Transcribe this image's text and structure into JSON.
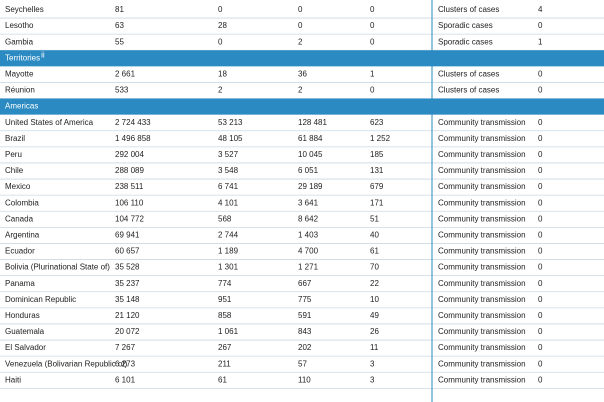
{
  "table": {
    "rows": [
      {
        "cells": [
          "Seychelles",
          "81",
          "0",
          "0",
          "0",
          "Clusters of cases",
          "4"
        ]
      },
      {
        "cells": [
          "Lesotho",
          "63",
          "28",
          "0",
          "0",
          "Sporadic cases",
          "0"
        ]
      },
      {
        "cells": [
          "Gambia",
          "55",
          "0",
          "2",
          "0",
          "Sporadic cases",
          "1"
        ]
      },
      {
        "section": "Territories",
        "note": "ii"
      },
      {
        "cells": [
          "Mayotte",
          "2 661",
          "18",
          "36",
          "1",
          "Clusters of cases",
          "0"
        ]
      },
      {
        "cells": [
          "Réunion",
          "533",
          "2",
          "2",
          "0",
          "Clusters of cases",
          "0"
        ]
      },
      {
        "section": "Americas"
      },
      {
        "cells": [
          "United States of America",
          "2 724 433",
          "53 213",
          "128 481",
          "623",
          "Community transmission",
          "0"
        ]
      },
      {
        "cells": [
          "Brazil",
          "1 496 858",
          "48 105",
          "61 884",
          "1 252",
          "Community transmission",
          "0"
        ]
      },
      {
        "cells": [
          "Peru",
          "292 004",
          "3 527",
          "10 045",
          "185",
          "Community transmission",
          "0"
        ]
      },
      {
        "cells": [
          "Chile",
          "288 089",
          "3 548",
          "6 051",
          "131",
          "Community transmission",
          "0"
        ]
      },
      {
        "cells": [
          "Mexico",
          "238 511",
          "6 741",
          "29 189",
          "679",
          "Community transmission",
          "0"
        ]
      },
      {
        "cells": [
          "Colombia",
          "106 110",
          "4 101",
          "3 641",
          "171",
          "Community transmission",
          "0"
        ]
      },
      {
        "cells": [
          "Canada",
          "104 772",
          "568",
          "8 642",
          "51",
          "Community transmission",
          "0"
        ]
      },
      {
        "cells": [
          "Argentina",
          "69 941",
          "2 744",
          "1 403",
          "40",
          "Community transmission",
          "0"
        ]
      },
      {
        "cells": [
          "Ecuador",
          "60 657",
          "1 189",
          "4 700",
          "61",
          "Community transmission",
          "0"
        ]
      },
      {
        "cells": [
          "Bolivia (Plurinational State of)",
          "35 528",
          "1 301",
          "1 271",
          "70",
          "Community transmission",
          "0"
        ]
      },
      {
        "cells": [
          "Panama",
          "35 237",
          "774",
          "667",
          "22",
          "Community transmission",
          "0"
        ]
      },
      {
        "cells": [
          "Dominican Republic",
          "35 148",
          "951",
          "775",
          "10",
          "Community transmission",
          "0"
        ]
      },
      {
        "cells": [
          "Honduras",
          "21 120",
          "858",
          "591",
          "49",
          "Community transmission",
          "0"
        ]
      },
      {
        "cells": [
          "Guatemala",
          "20 072",
          "1 061",
          "843",
          "26",
          "Community transmission",
          "0"
        ]
      },
      {
        "cells": [
          "El Salvador",
          "7 267",
          "267",
          "202",
          "11",
          "Community transmission",
          "0"
        ]
      },
      {
        "cells": [
          "Venezuela (Bolivarian Republic of)",
          "6 273",
          "211",
          "57",
          "3",
          "Community transmission",
          "0"
        ]
      },
      {
        "cells": [
          "Haiti",
          "6 101",
          "61",
          "110",
          "3",
          "Community transmission",
          "0"
        ]
      }
    ]
  }
}
